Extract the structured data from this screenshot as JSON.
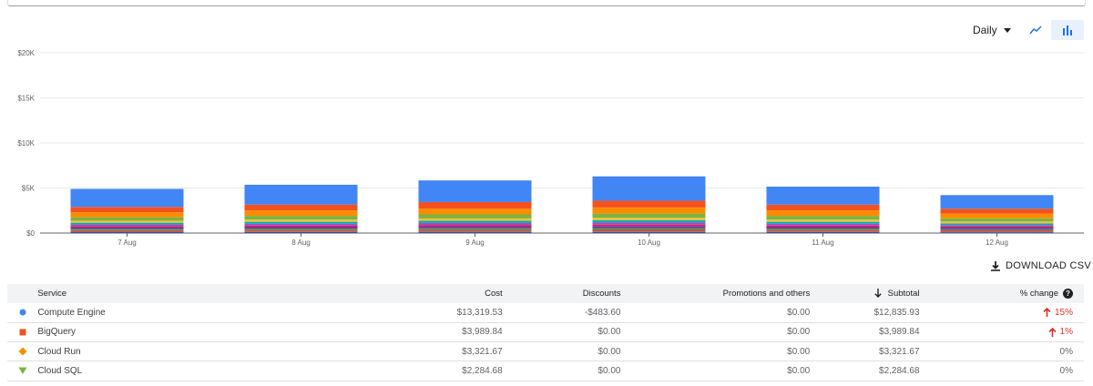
{
  "controls": {
    "period": "Daily",
    "line_view_icon": "trend-line-icon",
    "bar_view_icon": "bar-chart-icon",
    "download_label": "DOWNLOAD CSV",
    "download_icon": "download-icon"
  },
  "colors": {
    "compute_engine": "#4285f4",
    "bigquery": "#f4511e",
    "cloud_run": "#fb8c00",
    "cloud_sql": "#7cb342",
    "change_up": "#d93025"
  },
  "chart_data": {
    "type": "bar",
    "stacked": true,
    "categories": [
      "7 Aug",
      "8 Aug",
      "9 Aug",
      "10 Aug",
      "11 Aug",
      "12 Aug"
    ],
    "y_ticks": [
      "$0",
      "$5K",
      "$10K",
      "$15K",
      "$20K"
    ],
    "ylim": [
      0,
      20000
    ],
    "grid": true,
    "series": [
      {
        "name": "Compute Engine",
        "color": "#4285f4",
        "values": [
          2000,
          2200,
          2400,
          2700,
          2000,
          1500
        ]
      },
      {
        "name": "BigQuery",
        "color": "#f4511e",
        "values": [
          600,
          650,
          720,
          750,
          640,
          550
        ]
      },
      {
        "name": "Cloud Run",
        "color": "#fb8c00",
        "values": [
          550,
          600,
          650,
          680,
          600,
          520
        ]
      },
      {
        "name": "Cloud SQL",
        "color": "#7cb342",
        "values": [
          380,
          420,
          450,
          470,
          420,
          360
        ]
      },
      {
        "color": "#fbc02d",
        "values": [
          220,
          240,
          260,
          270,
          240,
          210
        ]
      },
      {
        "color": "#00acc1",
        "values": [
          200,
          220,
          240,
          250,
          220,
          190
        ]
      },
      {
        "color": "#ab47bc",
        "values": [
          180,
          200,
          220,
          230,
          200,
          170
        ]
      },
      {
        "color": "#d81b60",
        "values": [
          160,
          170,
          190,
          200,
          170,
          150
        ]
      },
      {
        "color": "#5e35b1",
        "values": [
          150,
          160,
          170,
          180,
          160,
          140
        ]
      },
      {
        "color": "#43a047",
        "values": [
          130,
          140,
          150,
          160,
          140,
          120
        ]
      },
      {
        "color": "#e53935",
        "values": [
          120,
          130,
          140,
          150,
          130,
          110
        ]
      },
      {
        "color": "#8d6e63",
        "values": [
          110,
          120,
          130,
          130,
          120,
          100
        ]
      },
      {
        "color": "#3949ab",
        "values": [
          100,
          110,
          120,
          120,
          110,
          90
        ]
      }
    ]
  },
  "table": {
    "headers": {
      "service": "Service",
      "cost": "Cost",
      "discounts": "Discounts",
      "promotions": "Promotions and others",
      "subtotal": "Subtotal",
      "change": "% change"
    },
    "rows": [
      {
        "service": "Compute Engine",
        "marker": "circle",
        "color": "#4285f4",
        "cost": "$13,319.53",
        "discounts": "-$483.60",
        "promotions": "$0.00",
        "subtotal": "$12,835.93",
        "change": "15%",
        "trend": "up"
      },
      {
        "service": "BigQuery",
        "marker": "square",
        "color": "#f4511e",
        "cost": "$3,989.84",
        "discounts": "$0.00",
        "promotions": "$0.00",
        "subtotal": "$3,989.84",
        "change": "1%",
        "trend": "up"
      },
      {
        "service": "Cloud Run",
        "marker": "diamond",
        "color": "#fb8c00",
        "cost": "$3,321.67",
        "discounts": "$0.00",
        "promotions": "$0.00",
        "subtotal": "$3,321.67",
        "change": "0%",
        "trend": "none"
      },
      {
        "service": "Cloud SQL",
        "marker": "triangle",
        "color": "#7cb342",
        "cost": "$2,284.68",
        "discounts": "$0.00",
        "promotions": "$0.00",
        "subtotal": "$2,284.68",
        "change": "0%",
        "trend": "none"
      }
    ]
  }
}
